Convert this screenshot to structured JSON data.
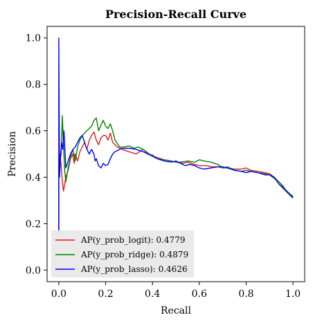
{
  "chart_data": {
    "type": "line",
    "title": "Precision-Recall Curve",
    "xlabel": "Recall",
    "ylabel": "Precision",
    "xlim": [
      -0.05,
      1.05
    ],
    "ylim": [
      -0.05,
      1.05
    ],
    "xticks": [
      0.0,
      0.2,
      0.4,
      0.6,
      0.8,
      1.0
    ],
    "yticks": [
      0.0,
      0.2,
      0.4,
      0.6,
      0.8,
      1.0
    ],
    "xtick_labels": [
      "0.0",
      "0.2",
      "0.4",
      "0.6",
      "0.8",
      "1.0"
    ],
    "ytick_labels": [
      "0.0",
      "0.2",
      "0.4",
      "0.6",
      "0.8",
      "1.0"
    ],
    "grid": false,
    "legend_position": "lower-left",
    "series": [
      {
        "name": "AP(y_prob_logit): 0.4779",
        "color": "#e41a1c",
        "points": [
          [
            0.0,
            0.18
          ],
          [
            0.0,
            0.4
          ],
          [
            0.005,
            0.5
          ],
          [
            0.01,
            0.45
          ],
          [
            0.015,
            0.38
          ],
          [
            0.02,
            0.34
          ],
          [
            0.03,
            0.4
          ],
          [
            0.04,
            0.43
          ],
          [
            0.05,
            0.48
          ],
          [
            0.06,
            0.5
          ],
          [
            0.065,
            0.46
          ],
          [
            0.07,
            0.5
          ],
          [
            0.08,
            0.47
          ],
          [
            0.09,
            0.51
          ],
          [
            0.1,
            0.53
          ],
          [
            0.11,
            0.55
          ],
          [
            0.12,
            0.52
          ],
          [
            0.13,
            0.56
          ],
          [
            0.14,
            0.58
          ],
          [
            0.15,
            0.595
          ],
          [
            0.16,
            0.56
          ],
          [
            0.17,
            0.54
          ],
          [
            0.18,
            0.57
          ],
          [
            0.19,
            0.58
          ],
          [
            0.2,
            0.58
          ],
          [
            0.21,
            0.56
          ],
          [
            0.22,
            0.59
          ],
          [
            0.23,
            0.55
          ],
          [
            0.25,
            0.53
          ],
          [
            0.27,
            0.52
          ],
          [
            0.3,
            0.51
          ],
          [
            0.33,
            0.5
          ],
          [
            0.36,
            0.52
          ],
          [
            0.38,
            0.5
          ],
          [
            0.4,
            0.49
          ],
          [
            0.42,
            0.485
          ],
          [
            0.45,
            0.475
          ],
          [
            0.48,
            0.47
          ],
          [
            0.5,
            0.465
          ],
          [
            0.53,
            0.46
          ],
          [
            0.55,
            0.465
          ],
          [
            0.58,
            0.455
          ],
          [
            0.6,
            0.45
          ],
          [
            0.63,
            0.45
          ],
          [
            0.65,
            0.445
          ],
          [
            0.68,
            0.445
          ],
          [
            0.7,
            0.44
          ],
          [
            0.72,
            0.44
          ],
          [
            0.75,
            0.435
          ],
          [
            0.78,
            0.435
          ],
          [
            0.8,
            0.44
          ],
          [
            0.82,
            0.43
          ],
          [
            0.85,
            0.425
          ],
          [
            0.88,
            0.42
          ],
          [
            0.9,
            0.415
          ],
          [
            0.92,
            0.4
          ],
          [
            0.94,
            0.38
          ],
          [
            0.96,
            0.36
          ],
          [
            0.97,
            0.34
          ],
          [
            0.98,
            0.33
          ],
          [
            0.99,
            0.325
          ],
          [
            1.0,
            0.32
          ]
        ]
      },
      {
        "name": "AP(y_prob_ridge): 0.4879",
        "color": "#008000",
        "points": [
          [
            0.0,
            0.17
          ],
          [
            0.0,
            0.45
          ],
          [
            0.01,
            0.5
          ],
          [
            0.015,
            0.665
          ],
          [
            0.02,
            0.54
          ],
          [
            0.025,
            0.43
          ],
          [
            0.03,
            0.38
          ],
          [
            0.04,
            0.44
          ],
          [
            0.05,
            0.49
          ],
          [
            0.06,
            0.52
          ],
          [
            0.07,
            0.47
          ],
          [
            0.08,
            0.53
          ],
          [
            0.09,
            0.56
          ],
          [
            0.1,
            0.58
          ],
          [
            0.12,
            0.6
          ],
          [
            0.14,
            0.62
          ],
          [
            0.15,
            0.645
          ],
          [
            0.16,
            0.655
          ],
          [
            0.17,
            0.6
          ],
          [
            0.18,
            0.625
          ],
          [
            0.19,
            0.645
          ],
          [
            0.2,
            0.62
          ],
          [
            0.21,
            0.61
          ],
          [
            0.22,
            0.63
          ],
          [
            0.23,
            0.6
          ],
          [
            0.24,
            0.56
          ],
          [
            0.26,
            0.53
          ],
          [
            0.28,
            0.53
          ],
          [
            0.3,
            0.535
          ],
          [
            0.32,
            0.525
          ],
          [
            0.34,
            0.53
          ],
          [
            0.36,
            0.52
          ],
          [
            0.38,
            0.505
          ],
          [
            0.4,
            0.49
          ],
          [
            0.42,
            0.48
          ],
          [
            0.45,
            0.475
          ],
          [
            0.48,
            0.47
          ],
          [
            0.5,
            0.465
          ],
          [
            0.52,
            0.465
          ],
          [
            0.55,
            0.47
          ],
          [
            0.58,
            0.465
          ],
          [
            0.6,
            0.475
          ],
          [
            0.62,
            0.47
          ],
          [
            0.65,
            0.465
          ],
          [
            0.68,
            0.455
          ],
          [
            0.7,
            0.44
          ],
          [
            0.72,
            0.445
          ],
          [
            0.75,
            0.43
          ],
          [
            0.78,
            0.425
          ],
          [
            0.8,
            0.43
          ],
          [
            0.82,
            0.425
          ],
          [
            0.85,
            0.42
          ],
          [
            0.88,
            0.415
          ],
          [
            0.9,
            0.41
          ],
          [
            0.92,
            0.395
          ],
          [
            0.94,
            0.38
          ],
          [
            0.96,
            0.355
          ],
          [
            0.98,
            0.335
          ],
          [
            0.99,
            0.325
          ],
          [
            1.0,
            0.315
          ]
        ]
      },
      {
        "name": "AP(y_prob_lasso): 0.4626",
        "color": "#0000ff",
        "points": [
          [
            0.0,
            0.16
          ],
          [
            0.0,
            1.0
          ],
          [
            0.003,
            0.4
          ],
          [
            0.008,
            0.5
          ],
          [
            0.012,
            0.55
          ],
          [
            0.017,
            0.52
          ],
          [
            0.022,
            0.6
          ],
          [
            0.03,
            0.44
          ],
          [
            0.04,
            0.47
          ],
          [
            0.05,
            0.5
          ],
          [
            0.06,
            0.52
          ],
          [
            0.07,
            0.53
          ],
          [
            0.08,
            0.55
          ],
          [
            0.09,
            0.57
          ],
          [
            0.1,
            0.58
          ],
          [
            0.11,
            0.55
          ],
          [
            0.12,
            0.52
          ],
          [
            0.13,
            0.5
          ],
          [
            0.14,
            0.52
          ],
          [
            0.15,
            0.5
          ],
          [
            0.155,
            0.47
          ],
          [
            0.16,
            0.48
          ],
          [
            0.17,
            0.45
          ],
          [
            0.18,
            0.44
          ],
          [
            0.19,
            0.46
          ],
          [
            0.2,
            0.45
          ],
          [
            0.21,
            0.455
          ],
          [
            0.22,
            0.48
          ],
          [
            0.23,
            0.5
          ],
          [
            0.24,
            0.51
          ],
          [
            0.25,
            0.515
          ],
          [
            0.27,
            0.525
          ],
          [
            0.3,
            0.525
          ],
          [
            0.33,
            0.52
          ],
          [
            0.36,
            0.51
          ],
          [
            0.38,
            0.5
          ],
          [
            0.4,
            0.495
          ],
          [
            0.42,
            0.48
          ],
          [
            0.45,
            0.47
          ],
          [
            0.48,
            0.465
          ],
          [
            0.5,
            0.47
          ],
          [
            0.52,
            0.46
          ],
          [
            0.54,
            0.45
          ],
          [
            0.56,
            0.455
          ],
          [
            0.58,
            0.45
          ],
          [
            0.6,
            0.44
          ],
          [
            0.62,
            0.435
          ],
          [
            0.65,
            0.44
          ],
          [
            0.68,
            0.445
          ],
          [
            0.7,
            0.445
          ],
          [
            0.72,
            0.44
          ],
          [
            0.75,
            0.43
          ],
          [
            0.78,
            0.425
          ],
          [
            0.8,
            0.42
          ],
          [
            0.82,
            0.425
          ],
          [
            0.85,
            0.42
          ],
          [
            0.88,
            0.41
          ],
          [
            0.9,
            0.41
          ],
          [
            0.92,
            0.4
          ],
          [
            0.94,
            0.37
          ],
          [
            0.96,
            0.35
          ],
          [
            0.98,
            0.33
          ],
          [
            0.99,
            0.32
          ],
          [
            1.0,
            0.31
          ]
        ]
      }
    ]
  }
}
